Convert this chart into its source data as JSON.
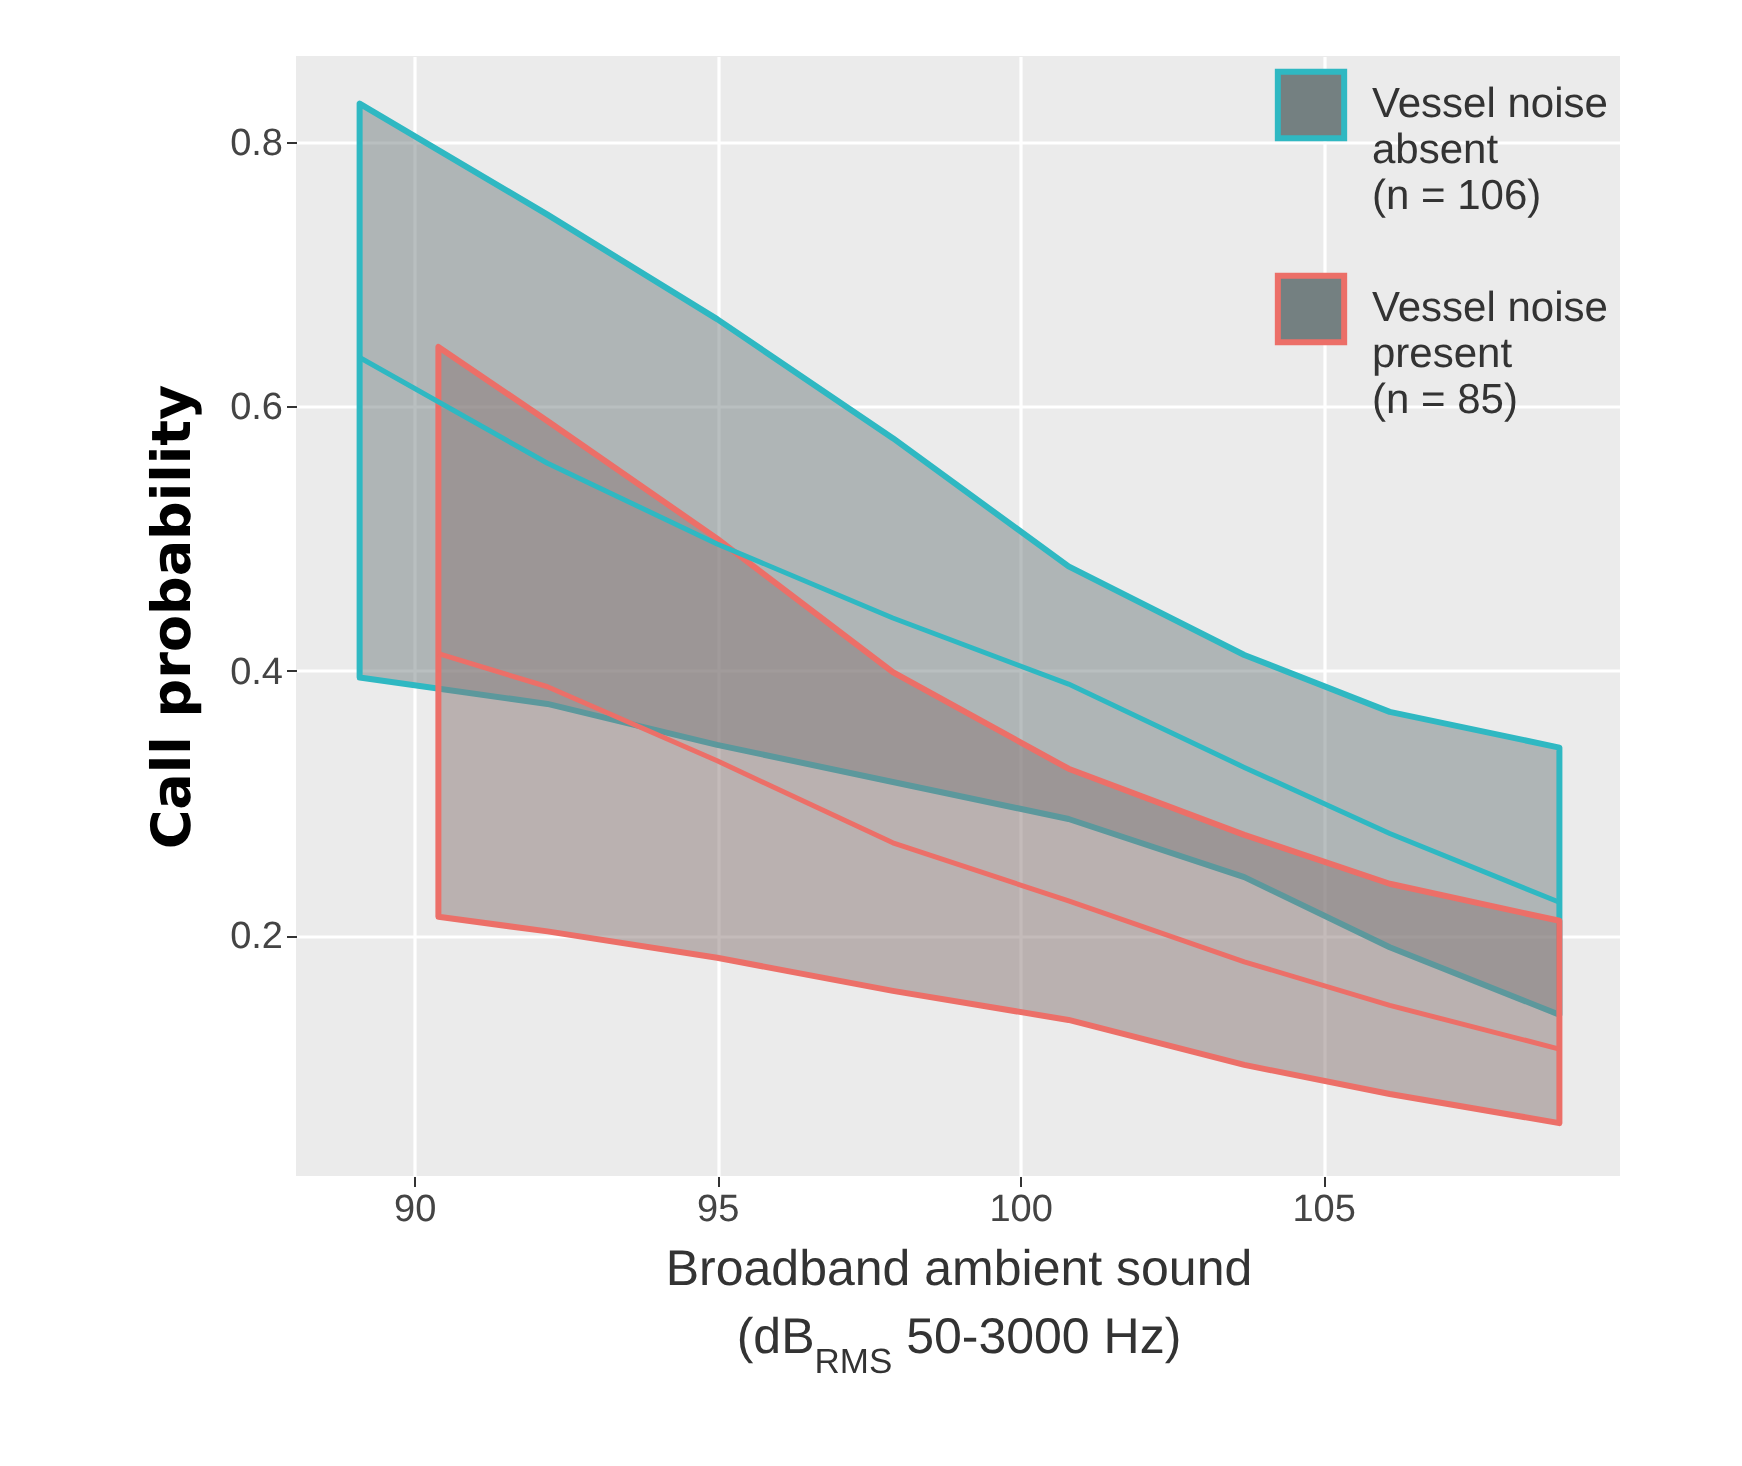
{
  "chart_data": {
    "type": "line",
    "xlabel": "Broadband ambient sound (dB$_{RMS}$ 50-3000 Hz)",
    "ylabel": "Call probability",
    "xlim": [
      88.05,
      109.9
    ],
    "ylim": [
      0.018,
      0.865
    ],
    "xticks": [
      90,
      95,
      100,
      105
    ],
    "yticks": [
      0.2,
      0.4,
      0.6,
      0.8
    ],
    "grid": true,
    "legend": "top right",
    "series": [
      {
        "name": "Vessel noise absent (n = 106)",
        "color": "#2fb8c2",
        "x": [
          89.1,
          92.2,
          95,
          97.9,
          100.8,
          103.7,
          106.1,
          108.9
        ],
        "values": [
          0.637,
          0.557,
          0.496,
          0.44,
          0.39,
          0.327,
          0.277,
          0.225
        ],
        "lower": [
          0.395,
          0.375,
          0.344,
          0.316,
          0.288,
          0.244,
          0.191,
          0.14
        ],
        "upper": [
          0.829,
          0.745,
          0.666,
          0.576,
          0.479,
          0.412,
          0.369,
          0.342
        ]
      },
      {
        "name": "Vessel noise present (n = 85)",
        "color": "#ec6f68",
        "x": [
          90.4,
          92.2,
          95,
          97.9,
          100.8,
          103.7,
          106.1,
          108.9
        ],
        "values": [
          0.413,
          0.388,
          0.332,
          0.27,
          0.226,
          0.18,
          0.147,
          0.114
        ],
        "lower": [
          0.214,
          0.203,
          0.183,
          0.158,
          0.136,
          0.102,
          0.08,
          0.058
        ],
        "upper": [
          0.645,
          0.589,
          0.5,
          0.399,
          0.326,
          0.276,
          0.239,
          0.211
        ]
      }
    ]
  }
}
